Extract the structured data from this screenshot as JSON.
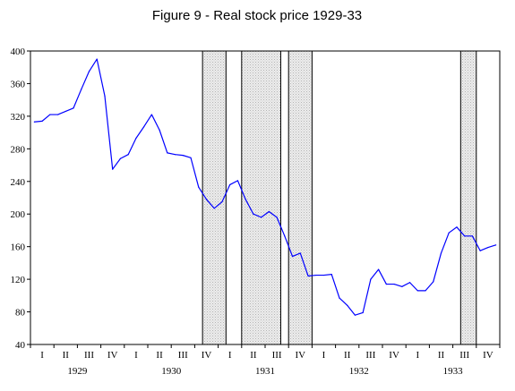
{
  "chart_data": {
    "type": "line",
    "title": "Figure 9 - Real stock price 1929-33",
    "xlabel": "",
    "ylabel": "",
    "ylim": [
      40,
      400
    ],
    "yticks": [
      "40",
      "80",
      "120",
      "160",
      "200",
      "240",
      "280",
      "320",
      "360",
      "400"
    ],
    "grid": false,
    "legend": "none",
    "quarters": [
      "I",
      "II",
      "III",
      "IV",
      "I",
      "II",
      "III",
      "IV",
      "I",
      "II",
      "III",
      "IV",
      "I",
      "II",
      "III",
      "IV",
      "I",
      "II",
      "III",
      "IV"
    ],
    "years": [
      "1929",
      "1930",
      "1931",
      "1932",
      "1933"
    ],
    "x_range_months": [
      0,
      59
    ],
    "shaded_periods_months": [
      [
        22,
        25
      ],
      [
        27,
        32
      ],
      [
        33,
        36
      ],
      [
        55,
        57
      ]
    ],
    "series": [
      {
        "color": "#0000ff",
        "x_months": [
          0,
          1,
          2,
          3,
          4,
          5,
          6,
          7,
          8,
          9,
          10,
          11,
          12,
          13,
          14,
          15,
          16,
          17,
          18,
          19,
          20,
          21,
          22,
          23,
          24,
          25,
          26,
          27,
          28,
          29,
          30,
          31,
          32,
          33,
          34,
          35,
          36,
          37,
          38,
          39,
          40,
          41,
          42,
          43,
          44,
          45,
          46,
          47,
          48,
          49,
          50,
          51,
          52,
          53,
          54,
          55,
          56,
          57,
          58,
          59
        ],
        "values": [
          313,
          314,
          322,
          322,
          326,
          330,
          353,
          375,
          390,
          345,
          255,
          268,
          273,
          293,
          307,
          322,
          303,
          275,
          273,
          272,
          269,
          233,
          218,
          207,
          215,
          236,
          241,
          218,
          200,
          196,
          203,
          196,
          173,
          148,
          152,
          124,
          125,
          125,
          126,
          97,
          88,
          76,
          79,
          120,
          132,
          114,
          114,
          111,
          116,
          106,
          106,
          117,
          152,
          177,
          184,
          173,
          173,
          155,
          159,
          162
        ]
      }
    ]
  }
}
